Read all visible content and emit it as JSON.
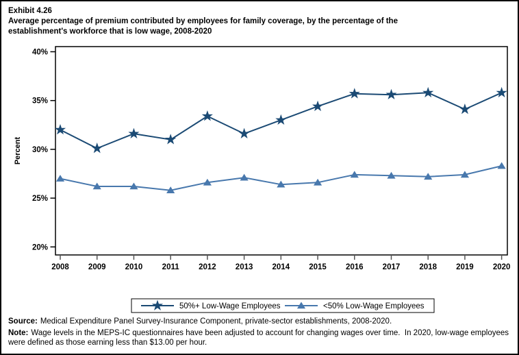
{
  "header": {
    "exhibit": "Exhibit 4.26",
    "title_lines": [
      "Average percentage of premium contributed by employees for family coverage, by the percentage of the",
      "establishment's workforce that is low wage, 2008-2020"
    ]
  },
  "chart_data": {
    "type": "line",
    "title": "Average percentage of premium contributed by employees for family coverage, by the percentage of the establishment's workforce that is low wage, 2008-2020",
    "x": [
      2008,
      2009,
      2010,
      2011,
      2012,
      2013,
      2014,
      2015,
      2016,
      2017,
      2018,
      2019,
      2020
    ],
    "xlabel": "",
    "ylabel": "Percent",
    "ylim": [
      19.2,
      40.5
    ],
    "yticks": [
      20,
      25,
      30,
      35,
      40
    ],
    "ytick_suffix": "%",
    "grid": false,
    "legend_position": "bottom-box",
    "series": [
      {
        "name": "50%+ Low-Wage Employees",
        "marker": "star",
        "color": "#1b4a74",
        "values": [
          32.0,
          30.1,
          31.6,
          31.0,
          33.4,
          31.6,
          33.0,
          34.4,
          35.7,
          35.6,
          35.8,
          34.1,
          35.8
        ]
      },
      {
        "name": "<50% Low-Wage Employees",
        "marker": "triangle",
        "color": "#4878ad",
        "values": [
          27.0,
          26.2,
          26.2,
          25.8,
          26.6,
          27.1,
          26.4,
          26.6,
          27.4,
          27.3,
          27.2,
          27.4,
          28.3
        ]
      }
    ]
  },
  "footer": {
    "source_label": "Source:",
    "source_text": "Medical Expenditure Panel Survey-Insurance Component, private-sector establishments, 2008-2020.",
    "note_label": "Note:",
    "note_text": "Wage levels in the MEPS-IC questionnaires have been adjusted to account for changing wages over time.  In 2020, low-wage employees were defined as those earning less than $13.00 per hour."
  }
}
